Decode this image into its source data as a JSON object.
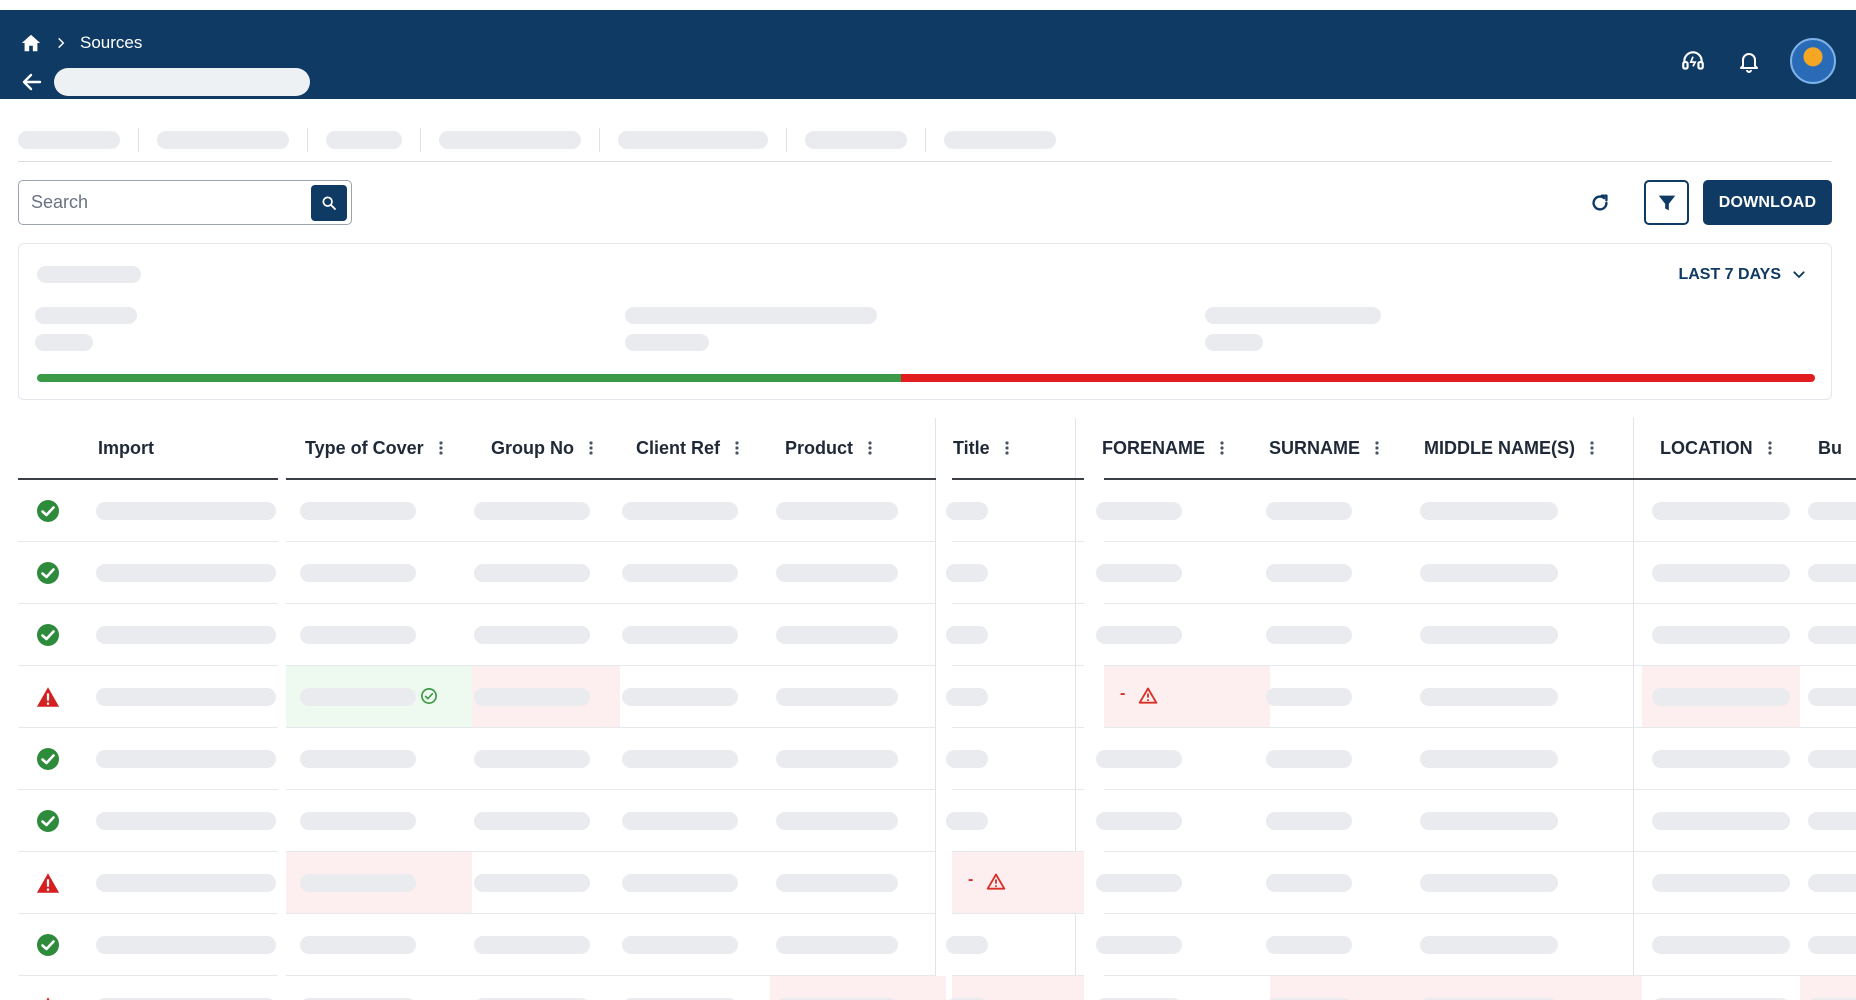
{
  "header": {
    "breadcrumb": "Sources",
    "icons": [
      "home-icon",
      "chevron-right-icon",
      "back-arrow-icon",
      "support-icon",
      "bell-icon",
      "avatar"
    ]
  },
  "toolbar": {
    "search_placeholder": "Search",
    "download_label": "DOWNLOAD"
  },
  "summary": {
    "range_label": "LAST 7 DAYS",
    "success_fraction": 0.486
  },
  "table": {
    "columns": [
      "Import",
      "Type of Cover",
      "Group No",
      "Client Ref",
      "Product",
      "Title",
      "FORENAME",
      "SURNAME",
      "MIDDLE NAME(S)",
      "LOCATION",
      "Bu"
    ],
    "row_status": [
      "ok",
      "ok",
      "ok",
      "error",
      "ok",
      "ok",
      "error",
      "ok",
      "error"
    ],
    "error_marker": "-"
  },
  "colors": {
    "header_bg": "#0f3a63",
    "success": "#3a9a46",
    "error": "#e11d1d"
  }
}
